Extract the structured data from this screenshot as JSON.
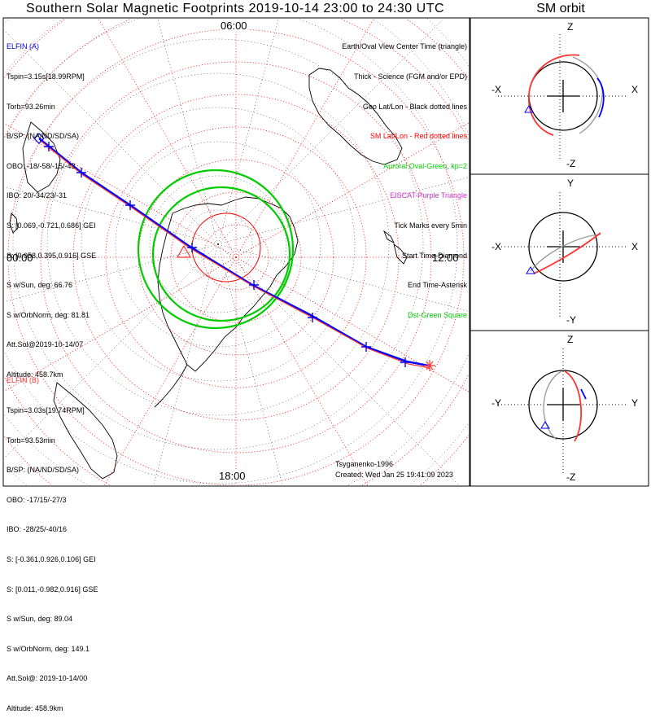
{
  "title": "Southern Solar Magnetic Footprints 2019-10-14 23:00 to 24:30 UTC",
  "sm_orbit_title": "SM orbit",
  "time_labels": {
    "top": "06:00",
    "left": "00:00",
    "right": "12:00",
    "bottom": "18:00"
  },
  "elfin_a": {
    "header": "ELFIN (A)",
    "lines": [
      "Tspin=3.15s[18.99RPM]",
      "Torb=93.26min",
      "B/SP: (NA/ND/SD/SA)",
      "OBO: -18/-58/-15/-43",
      "IBO: 20/-34/23/-31",
      "S: [0.069,-0.721,0.686] GEI",
      "S: [0.058,0.395,0.916] GSE",
      "S w/Sun, deg: 66.76",
      "S w/OrbNorm, deg: 81.81",
      "Att.Sol@2019-10-14/07",
      "Altitude: 458.7km"
    ]
  },
  "elfin_b": {
    "header": "ELFIN (B)",
    "lines": [
      "Tspin=3.03s[19.74RPM]",
      "Torb=93.53min",
      "B/SP: (NA/ND/SD/SA)",
      "OBO: -17/15/-27/3",
      "IBO: -28/25/-40/16",
      "S: [-0.361,0.926,0.106] GEI",
      "S: [0.011,-0.982,0.916] GSE",
      "S w/Sun, deg: 89.04",
      "S w/OrbNorm, deg: 149.1",
      "Att.Sol@: 2019-10-14/00",
      "Altitude: 458.9km"
    ]
  },
  "legend": [
    {
      "text": "Earth/Oval View Center Time (triangle)",
      "color": "#000000"
    },
    {
      "text": "Thick - Science (FGM and/or EPD)",
      "color": "#000000"
    },
    {
      "text": "Geo Lat/Lon - Black dotted lines",
      "color": "#000000"
    },
    {
      "text": "SM Lat/Lon - Red dotted lines",
      "color": "#ff0000"
    },
    {
      "text": "Auroral Oval-Green, kp=2",
      "color": "#00cc00"
    },
    {
      "text": "EISCAT-Purple Triangle",
      "color": "#cc33cc"
    },
    {
      "text": "Tick Marks every 5min",
      "color": "#000000"
    },
    {
      "text": "Start Time-Diamond",
      "color": "#000000"
    },
    {
      "text": "End Time-Asterisk",
      "color": "#000000"
    },
    {
      "text": "Dst-Green Square",
      "color": "#00cc00"
    }
  ],
  "credit_author": "Tsyganenko-1996",
  "credit_created": "Created: Wed Jan 25 19:41:09 2023",
  "sm_panels": {
    "top": {
      "up": "Z",
      "down": "-Z",
      "left": "-X",
      "right": "X"
    },
    "mid": {
      "up": "Y",
      "down": "-Y",
      "left": "-X",
      "right": "X"
    },
    "bot": {
      "up": "Z",
      "down": "-Z",
      "left": "-Y",
      "right": "Y"
    }
  },
  "colors": {
    "elfin_a": "#0000ff",
    "elfin_b": "#ff3333",
    "sm_grid": "#ff0000",
    "geo_grid": "#000000",
    "oval": "#00cc00"
  }
}
